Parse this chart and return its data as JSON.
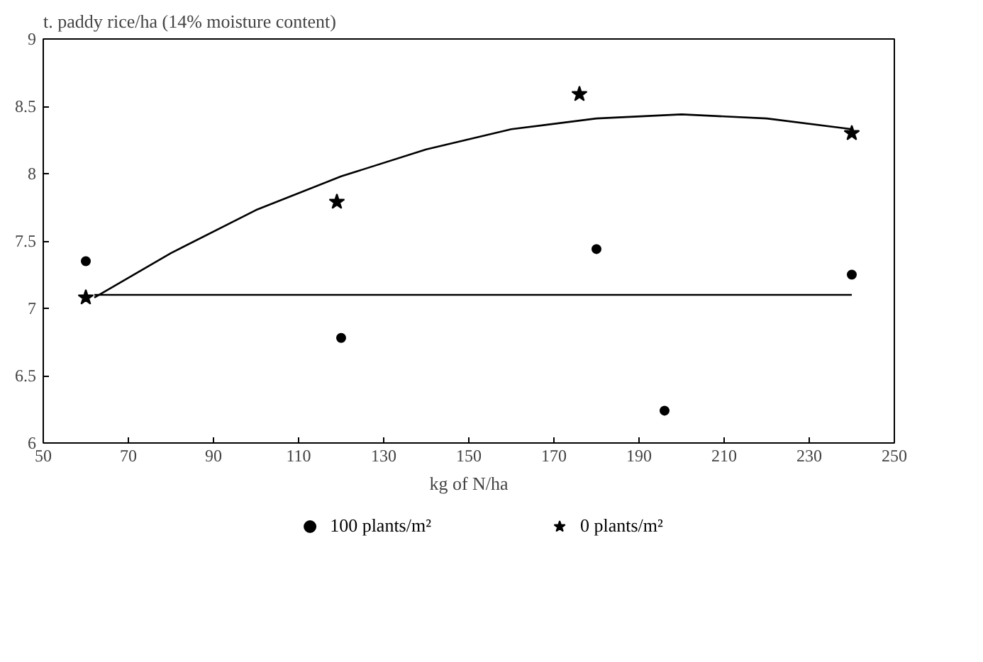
{
  "chart_data": {
    "type": "scatter",
    "ylabel": "t. paddy rice/ha (14% moisture content)",
    "xlabel": "kg of N/ha",
    "xlim": [
      50,
      250
    ],
    "xticks": [
      50,
      70,
      90,
      110,
      130,
      150,
      170,
      190,
      210,
      230,
      250
    ],
    "ylim": [
      6,
      9
    ],
    "yticks": [
      6,
      6.5,
      7,
      7.5,
      8,
      8.5,
      9
    ],
    "grid": false,
    "legend": "bottom",
    "series": [
      {
        "name": "100 plants/m²",
        "marker": "circle",
        "color": "#000000",
        "x": [
          60,
          120,
          180,
          196,
          240
        ],
        "values": [
          7.35,
          6.78,
          7.44,
          6.24,
          7.25
        ]
      },
      {
        "name": "0 plants/m²",
        "marker": "star",
        "color": "#000000",
        "x": [
          60,
          119,
          176,
          240
        ],
        "values": [
          7.08,
          7.79,
          8.59,
          8.3
        ]
      },
      {
        "type": "line",
        "color": "#000000",
        "x": [
          62,
          80,
          100,
          120,
          140,
          160,
          180,
          200,
          220,
          240
        ],
        "values": [
          7.08,
          7.41,
          7.73,
          7.98,
          8.18,
          8.33,
          8.41,
          8.44,
          8.41,
          8.33
        ]
      },
      {
        "type": "line",
        "color": "#000000",
        "x": [
          62,
          240
        ],
        "values": [
          7.1,
          7.1
        ]
      }
    ]
  }
}
